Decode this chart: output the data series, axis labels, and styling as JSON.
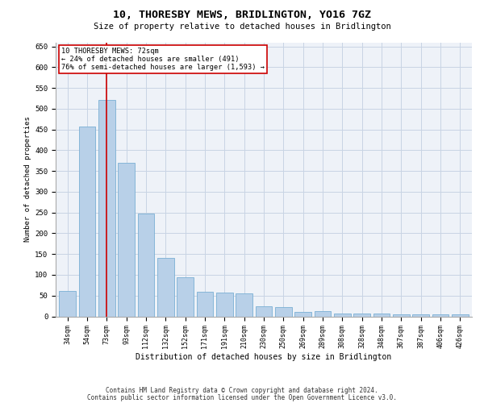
{
  "title": "10, THORESBY MEWS, BRIDLINGTON, YO16 7GZ",
  "subtitle": "Size of property relative to detached houses in Bridlington",
  "xlabel": "Distribution of detached houses by size in Bridlington",
  "ylabel": "Number of detached properties",
  "categories": [
    "34sqm",
    "54sqm",
    "73sqm",
    "93sqm",
    "112sqm",
    "132sqm",
    "152sqm",
    "171sqm",
    "191sqm",
    "210sqm",
    "230sqm",
    "250sqm",
    "269sqm",
    "289sqm",
    "308sqm",
    "328sqm",
    "348sqm",
    "367sqm",
    "387sqm",
    "406sqm",
    "426sqm"
  ],
  "values": [
    62,
    457,
    521,
    369,
    248,
    140,
    95,
    60,
    57,
    55,
    25,
    23,
    10,
    12,
    7,
    7,
    6,
    5,
    5,
    5,
    5
  ],
  "bar_color": "#b8d0e8",
  "bar_edge_color": "#7aafd4",
  "grid_color": "#c8d4e4",
  "background_color": "#eef2f8",
  "vline_x": 2,
  "vline_color": "#cc0000",
  "annotation_text": "10 THORESBY MEWS: 72sqm\n← 24% of detached houses are smaller (491)\n76% of semi-detached houses are larger (1,593) →",
  "annotation_box_color": "#ffffff",
  "annotation_box_edge": "#cc0000",
  "ylim": [
    0,
    660
  ],
  "yticks": [
    0,
    50,
    100,
    150,
    200,
    250,
    300,
    350,
    400,
    450,
    500,
    550,
    600,
    650
  ],
  "footer_line1": "Contains HM Land Registry data © Crown copyright and database right 2024.",
  "footer_line2": "Contains public sector information licensed under the Open Government Licence v3.0."
}
